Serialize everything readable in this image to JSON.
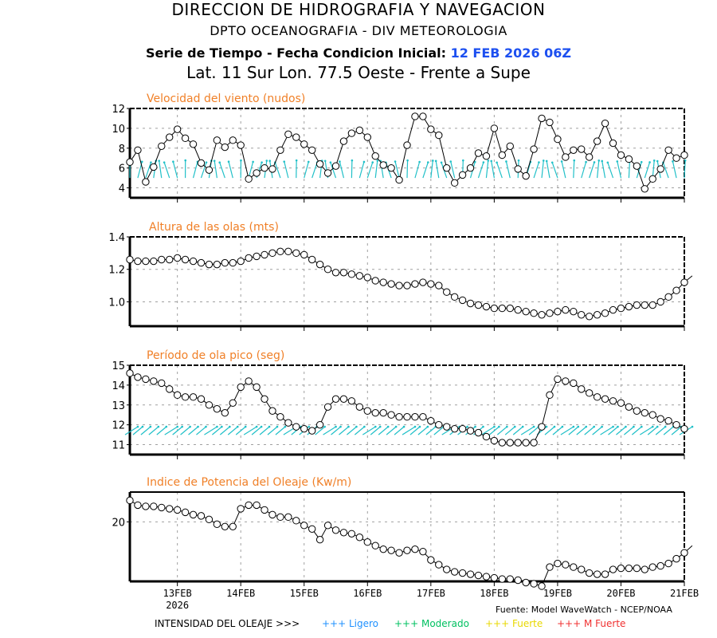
{
  "header": {
    "title": "DIRECCION DE HIDROGRAFIA Y NAVEGACION",
    "subtitle": "DPTO OCEANOGRAFIA - DIV METEOROLOGIA",
    "series_label": "Serie de Tiempo - Fecha Condicion Inicial:",
    "init_date": "12 FEB 2026 06Z",
    "location": "Lat. 11 Sur  Lon. 77.5 Oeste - Frente a Supe"
  },
  "footer": {
    "source": "Fuente: Model WaveWatch - NCEP/NOAA",
    "intensity_label": "INTENSIDAD DEL OLEAJE >>>",
    "legend": [
      {
        "label": "+++ Ligero",
        "color": "#1e90ff"
      },
      {
        "label": "+++ Moderado",
        "color": "#00c060"
      },
      {
        "label": "+++ Fuerte",
        "color": "#e8d800"
      },
      {
        "label": "+++ M Fuerte",
        "color": "#f03030"
      }
    ]
  },
  "colors": {
    "title": "#f08028",
    "line": "#000000",
    "arrows": "#20c0c8",
    "grid": "#a0a0a0",
    "date": "#1c4ff0"
  },
  "chart_data": [
    {
      "type": "line",
      "title": "Velocidad del viento (nudos)",
      "x_start": "12FEB 06Z",
      "x_step_hours": 3,
      "x_tick_labels": [
        "13FEB",
        "14FEB",
        "15FEB",
        "16FEB",
        "17FEB",
        "18FEB",
        "19FEB",
        "20FEB",
        "21FEB"
      ],
      "x_tick_sublabel": "2026",
      "ylim": [
        3,
        12
      ],
      "yticks": [
        4,
        6,
        8,
        10,
        12
      ],
      "grid": true,
      "direction_arrows": true,
      "values": [
        6.6,
        7.8,
        4.6,
        6.1,
        8.2,
        9.1,
        9.9,
        9.0,
        8.4,
        6.5,
        5.8,
        8.8,
        8.1,
        8.8,
        8.3,
        4.9,
        5.5,
        6.0,
        5.9,
        7.8,
        9.4,
        9.1,
        8.4,
        7.8,
        6.4,
        5.5,
        6.2,
        8.7,
        9.5,
        9.8,
        9.1,
        7.2,
        6.3,
        6.0,
        4.8,
        8.3,
        11.2,
        11.2,
        9.9,
        9.3,
        6.0,
        4.5,
        5.3,
        6.0,
        7.5,
        7.2,
        10.0,
        7.3,
        8.2,
        5.9,
        5.2,
        7.9,
        11.0,
        10.6,
        8.9,
        7.1,
        7.8,
        7.9,
        7.1,
        8.7,
        10.5,
        8.5,
        7.3,
        6.9,
        6.2,
        3.9,
        4.9,
        5.9,
        7.8,
        7.0,
        7.3
      ]
    },
    {
      "type": "line",
      "title": "Altura de las olas (mts)",
      "x_start": "12FEB 06Z",
      "x_step_hours": 3,
      "ylim": [
        0.85,
        1.4
      ],
      "yticks": [
        1.0,
        1.2,
        1.4
      ],
      "ytick_labels": [
        "1.0",
        "1.2",
        "1.4"
      ],
      "grid": true,
      "values": [
        1.26,
        1.25,
        1.25,
        1.25,
        1.26,
        1.26,
        1.27,
        1.26,
        1.25,
        1.24,
        1.23,
        1.23,
        1.24,
        1.24,
        1.25,
        1.27,
        1.28,
        1.29,
        1.3,
        1.31,
        1.31,
        1.3,
        1.29,
        1.26,
        1.23,
        1.2,
        1.18,
        1.18,
        1.17,
        1.16,
        1.15,
        1.13,
        1.12,
        1.11,
        1.1,
        1.1,
        1.11,
        1.12,
        1.11,
        1.1,
        1.06,
        1.03,
        1.01,
        0.99,
        0.98,
        0.97,
        0.96,
        0.96,
        0.96,
        0.95,
        0.94,
        0.93,
        0.92,
        0.93,
        0.94,
        0.95,
        0.94,
        0.92,
        0.91,
        0.92,
        0.93,
        0.95,
        0.96,
        0.97,
        0.98,
        0.98,
        0.98,
        1.0,
        1.03,
        1.07,
        1.12,
        1.16
      ]
    },
    {
      "type": "line",
      "title": "Periodo de ola pico (seg)",
      "display_title": "Período de ola pico (seg)",
      "x_start": "12FEB 06Z",
      "x_step_hours": 3,
      "ylim": [
        10.5,
        15
      ],
      "yticks": [
        11,
        12,
        13,
        14,
        15
      ],
      "grid": true,
      "direction_arrows": true,
      "values": [
        14.6,
        14.4,
        14.3,
        14.2,
        14.1,
        13.8,
        13.5,
        13.4,
        13.4,
        13.3,
        13.0,
        12.8,
        12.6,
        13.1,
        13.9,
        14.2,
        13.9,
        13.3,
        12.7,
        12.4,
        12.1,
        11.9,
        11.8,
        11.7,
        12.0,
        12.9,
        13.3,
        13.3,
        13.2,
        12.9,
        12.7,
        12.6,
        12.6,
        12.5,
        12.4,
        12.4,
        12.4,
        12.4,
        12.2,
        12.0,
        11.9,
        11.8,
        11.8,
        11.7,
        11.6,
        11.4,
        11.2,
        11.1,
        11.1,
        11.1,
        11.1,
        11.1,
        11.9,
        13.5,
        14.3,
        14.2,
        14.1,
        13.8,
        13.6,
        13.4,
        13.3,
        13.2,
        13.1,
        12.9,
        12.7,
        12.6,
        12.5,
        12.3,
        12.2,
        12.0,
        11.8
      ]
    },
    {
      "type": "line",
      "title": "Indice de Potencia del Oleaje (Kw/m)",
      "x_start": "12FEB 06Z",
      "x_step_hours": 3,
      "ylim": [
        15,
        22.5
      ],
      "yticks": [
        20
      ],
      "grid": true,
      "values": [
        21.8,
        21.4,
        21.3,
        21.3,
        21.2,
        21.1,
        21.0,
        20.8,
        20.6,
        20.5,
        20.2,
        19.8,
        19.6,
        19.6,
        21.1,
        21.4,
        21.4,
        21.0,
        20.6,
        20.4,
        20.4,
        20.1,
        19.7,
        19.4,
        18.5,
        19.7,
        19.3,
        19.1,
        19.0,
        18.7,
        18.3,
        18.0,
        17.7,
        17.6,
        17.4,
        17.6,
        17.7,
        17.5,
        16.8,
        16.4,
        16.0,
        15.8,
        15.7,
        15.6,
        15.5,
        15.4,
        15.3,
        15.2,
        15.2,
        15.1,
        14.9,
        14.8,
        14.6,
        16.2,
        16.5,
        16.4,
        16.2,
        16.0,
        15.7,
        15.6,
        15.6,
        16.0,
        16.1,
        16.1,
        16.1,
        16.0,
        16.2,
        16.3,
        16.5,
        16.9,
        17.4,
        18.0
      ]
    }
  ]
}
